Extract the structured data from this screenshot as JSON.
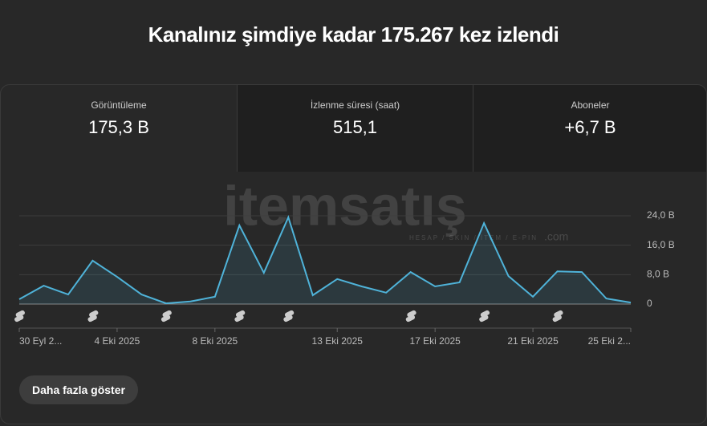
{
  "header": {
    "title": "Kanalınız şimdiye kadar 175.267 kez izlendi"
  },
  "metrics": [
    {
      "label": "Görüntüleme",
      "value": "175,3 B"
    },
    {
      "label": "İzlenme süresi (saat)",
      "value": "515,1"
    },
    {
      "label": "Aboneler",
      "value": "+6,7 B"
    }
  ],
  "watermark": {
    "text": "itemsatış",
    "subtext": "HESAP / SKIN / İTEM / E-PIN",
    "suffix": ".com"
  },
  "chart_data": {
    "type": "line",
    "categories": [
      "30 Eyl 2...",
      null,
      null,
      null,
      "4 Eki 2025",
      null,
      null,
      null,
      "8 Eki 2025",
      null,
      null,
      null,
      null,
      "13 Eki 2025",
      null,
      null,
      null,
      "17 Eki 2025",
      null,
      null,
      null,
      "21 Eki 2025",
      null,
      null,
      null,
      "25 Eki 2..."
    ],
    "series": [
      {
        "name": "Görüntüleme",
        "color": "#4fb3d9",
        "values": [
          1.3,
          5.0,
          2.6,
          11.8,
          7.4,
          2.6,
          0.2,
          0.7,
          2.0,
          21.4,
          8.5,
          23.6,
          2.4,
          6.8,
          4.8,
          3.1,
          8.7,
          4.8,
          5.9,
          22.0,
          7.6,
          2.0,
          8.9,
          8.7,
          1.5,
          0.4
        ]
      }
    ],
    "ylim": [
      0,
      24
    ],
    "yticks": [
      0,
      {
        "value": 8,
        "label": "8,0 B"
      },
      {
        "value": 16,
        "label": "16,0 B"
      },
      {
        "value": 24,
        "label": "24,0 B"
      }
    ],
    "grid": true
  },
  "button": {
    "label": "Daha fazla göster"
  }
}
